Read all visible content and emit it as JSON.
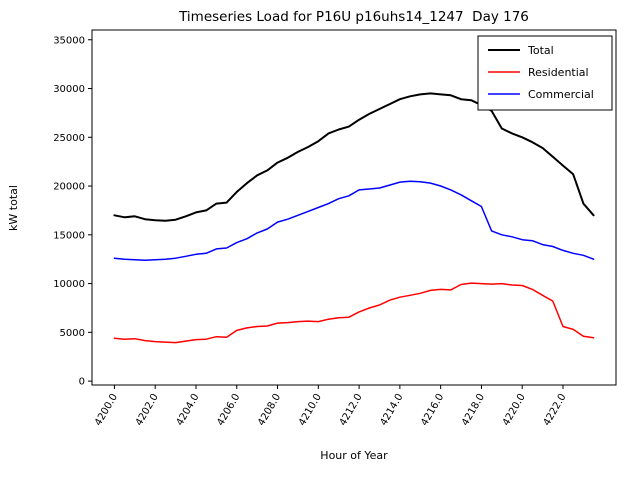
{
  "chart_data": {
    "type": "line",
    "title": "Timeseries Load for P16U p16uhs14_1247  Day 176",
    "xlabel": "Hour of Year",
    "ylabel": "kW total",
    "grid": false,
    "legend_position": "upper right",
    "xlim": [
      4198.9,
      4224.6
    ],
    "ylim": [
      -400,
      36000
    ],
    "xticks": [
      4200,
      4202,
      4204,
      4206,
      4208,
      4210,
      4212,
      4214,
      4216,
      4218,
      4220,
      4222
    ],
    "xtick_labels": [
      "4200.0",
      "4202.0",
      "4204.0",
      "4206.0",
      "4208.0",
      "4210.0",
      "4212.0",
      "4214.0",
      "4216.0",
      "4218.0",
      "4220.0",
      "4222.0"
    ],
    "yticks": [
      0,
      5000,
      10000,
      15000,
      20000,
      25000,
      30000,
      35000
    ],
    "ytick_labels": [
      "0",
      "5000",
      "10000",
      "15000",
      "20000",
      "25000",
      "30000",
      "35000"
    ],
    "x": [
      4200.0,
      4200.5,
      4201.0,
      4201.5,
      4202.0,
      4202.5,
      4203.0,
      4203.5,
      4204.0,
      4204.5,
      4205.0,
      4205.5,
      4206.0,
      4206.5,
      4207.0,
      4207.5,
      4208.0,
      4208.5,
      4209.0,
      4209.5,
      4210.0,
      4210.5,
      4211.0,
      4211.5,
      4212.0,
      4212.5,
      4213.0,
      4213.5,
      4214.0,
      4214.5,
      4215.0,
      4215.5,
      4216.0,
      4216.5,
      4217.0,
      4217.5,
      4218.0,
      4218.5,
      4219.0,
      4219.5,
      4220.0,
      4220.5,
      4221.0,
      4221.5,
      4222.0,
      4222.5,
      4223.0,
      4223.5
    ],
    "series": [
      {
        "name": "Total",
        "color": "#000000",
        "width": 2,
        "values": [
          17000,
          16800,
          16900,
          16600,
          16500,
          16450,
          16550,
          16900,
          17300,
          17500,
          18200,
          18300,
          19400,
          20300,
          21100,
          21600,
          22400,
          22900,
          23500,
          24000,
          24600,
          25400,
          25800,
          26100,
          26800,
          27400,
          27900,
          28400,
          28900,
          29200,
          29400,
          29500,
          29400,
          29300,
          28900,
          28800,
          28300,
          27700,
          25900,
          25400,
          25000,
          24500,
          23900,
          23000,
          22100,
          21200,
          18200,
          17000
        ]
      },
      {
        "name": "Residential",
        "color": "#ff0000",
        "width": 1.5,
        "values": [
          4400,
          4300,
          4350,
          4150,
          4050,
          4000,
          3950,
          4100,
          4250,
          4300,
          4550,
          4500,
          5200,
          5450,
          5600,
          5650,
          5950,
          6000,
          6100,
          6150,
          6100,
          6350,
          6500,
          6550,
          7100,
          7500,
          7800,
          8300,
          8600,
          8800,
          9000,
          9300,
          9400,
          9350,
          9900,
          10050,
          10000,
          9950,
          10000,
          9850,
          9800,
          9400,
          8800,
          8200,
          5600,
          5300,
          4600,
          4450
        ]
      },
      {
        "name": "Commercial",
        "color": "#0000ff",
        "width": 1.5,
        "values": [
          12600,
          12500,
          12450,
          12400,
          12450,
          12500,
          12600,
          12800,
          13000,
          13100,
          13550,
          13650,
          14200,
          14600,
          15200,
          15600,
          16300,
          16600,
          17000,
          17400,
          17800,
          18200,
          18700,
          19000,
          19600,
          19700,
          19800,
          20100,
          20400,
          20500,
          20450,
          20300,
          20000,
          19600,
          19100,
          18500,
          17900,
          15400,
          15000,
          14800,
          14500,
          14400,
          14000,
          13800,
          13400,
          13100,
          12900,
          12500
        ]
      }
    ]
  }
}
